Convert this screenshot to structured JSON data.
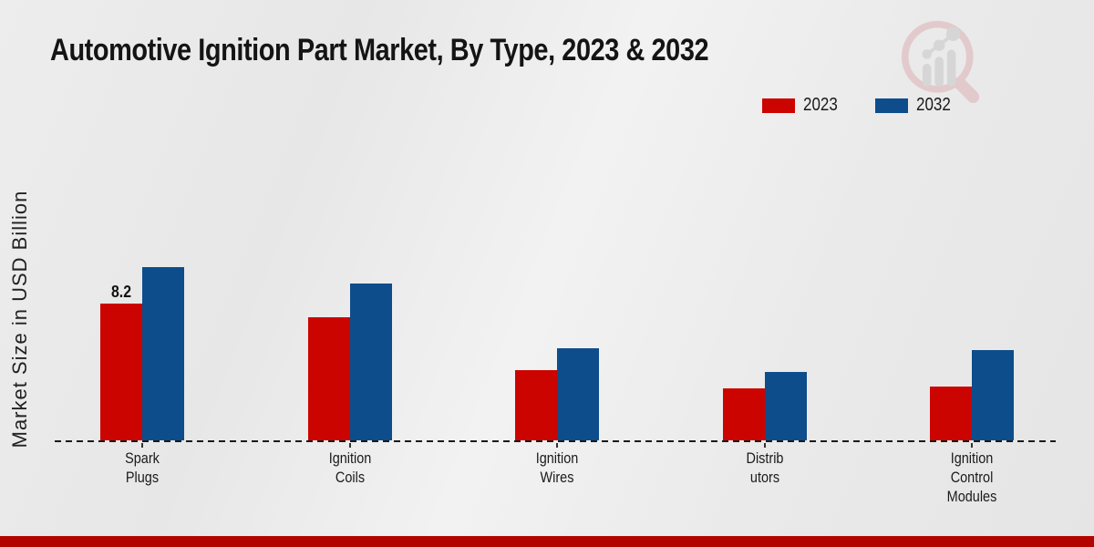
{
  "title": "Automotive Ignition Part Market, By Type, 2023 & 2032",
  "y_axis_label": "Market Size in USD Billion",
  "legend": {
    "items": [
      {
        "label": "2023"
      },
      {
        "label": "2032"
      }
    ]
  },
  "chart_data": {
    "type": "bar",
    "title": "Automotive Ignition Part Market, By Type, 2023 & 2032",
    "xlabel": "",
    "ylabel": "Market Size in USD Billion",
    "categories": [
      "Spark Plugs",
      "Ignition Coils",
      "Ignition Wires",
      "Distributors",
      "Ignition Control Modules"
    ],
    "category_label_lines": [
      [
        "Spark",
        "Plugs"
      ],
      [
        "Ignition",
        "Coils"
      ],
      [
        "Ignition",
        "Wires"
      ],
      [
        "Distrib",
        "utors"
      ],
      [
        "Ignition",
        "Control",
        "Modules"
      ]
    ],
    "series": [
      {
        "name": "2023",
        "color": "#cc0400",
        "values": [
          8.2,
          7.4,
          4.2,
          3.1,
          3.2
        ]
      },
      {
        "name": "2032",
        "color": "#0d4d8c",
        "values": [
          10.4,
          9.4,
          5.5,
          4.1,
          5.4
        ]
      }
    ],
    "data_labels": [
      {
        "series": "2023",
        "category": "Spark Plugs",
        "text": "8.2"
      }
    ],
    "ylim": [
      0,
      11
    ],
    "grid": false,
    "legend_position": "top-right",
    "baseline_style": "dashed"
  },
  "colors": {
    "series_2023": "#cc0400",
    "series_2032": "#0d4d8c",
    "footer_accent": "#b30400",
    "background": "#e9e9e9"
  },
  "logo": {
    "name": "magnifier-bar-chart-logo"
  }
}
